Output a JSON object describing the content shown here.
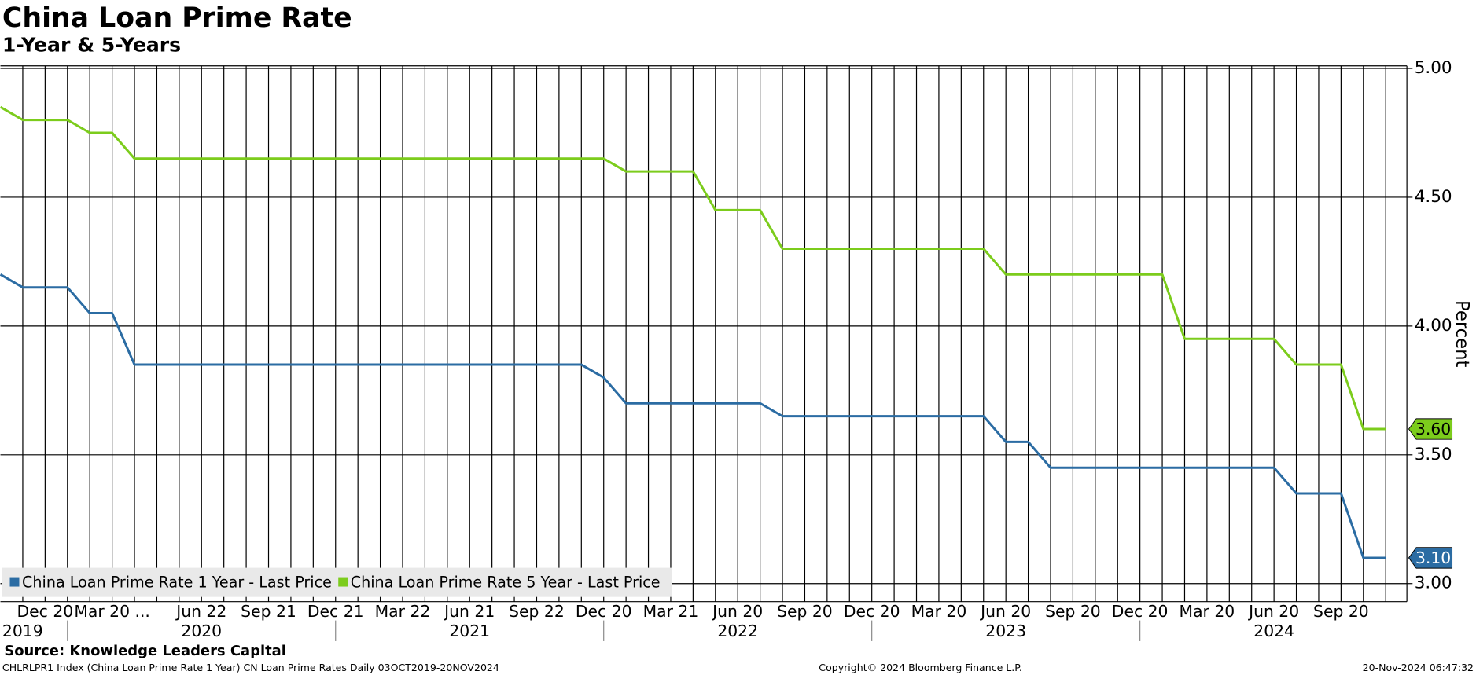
{
  "chart_data": {
    "type": "line",
    "title": "China Loan Prime Rate",
    "subtitle": "1-Year & 5-Years",
    "y_label": "Percent",
    "source": "Source: Knowledge Leaders Capital",
    "footer_left": "CHLRLPR1 Index (China Loan Prime Rate 1 Year) CN Loan Prime Rates  Daily 03OCT2019-20NOV2024",
    "footer_center": "Copyright© 2024 Bloomberg Finance L.P.",
    "footer_right": "20-Nov-2024 06:47:32",
    "categories": [
      null,
      null,
      "Dec 20",
      null,
      null,
      "Mar 20 ...",
      null,
      null,
      null,
      "Jun 22",
      null,
      null,
      "Sep 21",
      null,
      null,
      "Dec 21",
      null,
      null,
      "Mar 22",
      null,
      null,
      "Jun 21",
      null,
      null,
      "Sep 22",
      null,
      null,
      "Dec 20",
      null,
      null,
      "Mar 21",
      null,
      null,
      "Jun 20",
      null,
      null,
      "Sep 20",
      null,
      null,
      "Dec 20",
      null,
      null,
      "Mar 20",
      null,
      null,
      "Jun 20",
      null,
      null,
      "Sep 20",
      null,
      null,
      "Dec 20",
      null,
      null,
      "Mar 20",
      null,
      null,
      "Jun 20",
      null,
      null,
      "Sep 20",
      null,
      null
    ],
    "year_categories": [
      "2019",
      null,
      null,
      null,
      null,
      null,
      null,
      null,
      null,
      "2020",
      null,
      null,
      null,
      null,
      null,
      null,
      null,
      null,
      null,
      null,
      null,
      "2021",
      null,
      null,
      null,
      null,
      null,
      null,
      null,
      null,
      null,
      null,
      null,
      "2022",
      null,
      null,
      null,
      null,
      null,
      null,
      null,
      null,
      null,
      null,
      null,
      "2023",
      null,
      null,
      null,
      null,
      null,
      null,
      null,
      null,
      null,
      null,
      null,
      "2024",
      null,
      null,
      null,
      null,
      null
    ],
    "series": [
      {
        "name": "China Loan Prime Rate 1 Year - Last Price",
        "color": "#2b6ca3",
        "last_label": "3.10",
        "values": [
          4.2,
          4.15,
          4.15,
          4.15,
          4.05,
          4.05,
          3.85,
          3.85,
          3.85,
          3.85,
          3.85,
          3.85,
          3.85,
          3.85,
          3.85,
          3.85,
          3.85,
          3.85,
          3.85,
          3.85,
          3.85,
          3.85,
          3.85,
          3.85,
          3.85,
          3.85,
          3.85,
          3.8,
          3.7,
          3.7,
          3.7,
          3.7,
          3.7,
          3.7,
          3.7,
          3.65,
          3.65,
          3.65,
          3.65,
          3.65,
          3.65,
          3.65,
          3.65,
          3.65,
          3.65,
          3.55,
          3.55,
          3.45,
          3.45,
          3.45,
          3.45,
          3.45,
          3.45,
          3.45,
          3.45,
          3.45,
          3.45,
          3.45,
          3.35,
          3.35,
          3.35,
          3.1,
          3.1
        ]
      },
      {
        "name": "China Loan Prime Rate 5 Year - Last Price",
        "color": "#7ccc1c",
        "last_label": "3.60",
        "values": [
          4.85,
          4.8,
          4.8,
          4.8,
          4.75,
          4.75,
          4.65,
          4.65,
          4.65,
          4.65,
          4.65,
          4.65,
          4.65,
          4.65,
          4.65,
          4.65,
          4.65,
          4.65,
          4.65,
          4.65,
          4.65,
          4.65,
          4.65,
          4.65,
          4.65,
          4.65,
          4.65,
          4.65,
          4.6,
          4.6,
          4.6,
          4.6,
          4.45,
          4.45,
          4.45,
          4.3,
          4.3,
          4.3,
          4.3,
          4.3,
          4.3,
          4.3,
          4.3,
          4.3,
          4.3,
          4.2,
          4.2,
          4.2,
          4.2,
          4.2,
          4.2,
          4.2,
          4.2,
          3.95,
          3.95,
          3.95,
          3.95,
          3.95,
          3.85,
          3.85,
          3.85,
          3.6,
          3.6
        ]
      }
    ],
    "ylim": [
      2.93,
      5.01
    ],
    "yticks": [
      {
        "value": 3,
        "label": "3.00"
      },
      {
        "value": 3.5,
        "label": "3.50"
      },
      {
        "value": 4,
        "label": "4.00"
      },
      {
        "value": 4.5,
        "label": "4.50"
      },
      {
        "value": 5,
        "label": "5.00"
      }
    ],
    "grid": true,
    "legend": "bottom-left"
  }
}
